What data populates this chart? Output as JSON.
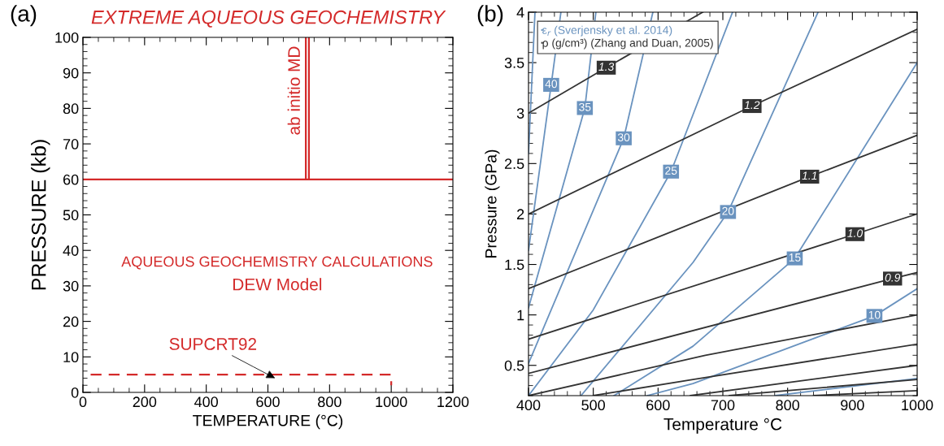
{
  "chart_data": [
    {
      "type": "line",
      "title": "EXTREME AQUEOUS GEOCHEMISTRY",
      "subtitle": "(a)",
      "xlabel": "TEMPERATURE (°C)",
      "ylabel": "PRESSURE (kb)",
      "xlim": [
        0,
        1200
      ],
      "xticks": [
        0,
        200,
        400,
        600,
        800,
        1000,
        1200
      ],
      "ylim": [
        0,
        100
      ],
      "yticks": [
        0,
        10,
        20,
        30,
        40,
        50,
        60,
        70,
        80,
        90,
        100
      ],
      "grid": false,
      "legend": false,
      "annotations": [
        "AQUEOUS GEOCHEMISTRY CALCULATIONS",
        "DEW Model",
        {
          "text": "SUPCRT92",
          "x": 623,
          "y": 4
        }
      ],
      "series": [
        {
          "color": "#d42a2a",
          "x": [
            0,
            1200
          ],
          "values": [
            60,
            60
          ]
        },
        {
          "name": "ab initio MD",
          "color": "#d42a2a",
          "x": [
            723,
            723
          ],
          "values": [
            60,
            100
          ]
        },
        {
          "color": "#d42a2a",
          "x": [
            733,
            733
          ],
          "values": [
            60,
            100
          ]
        },
        {
          "color": "#d42a2a",
          "line_style": "dashed",
          "x": [
            25,
            1000,
            1000
          ],
          "values": [
            5,
            5,
            2
          ]
        }
      ]
    },
    {
      "type": "line",
      "subtitle": "(b)",
      "xlabel": "Temperature °C",
      "ylabel": "Pressure (GPa)",
      "xlim": [
        400,
        1000
      ],
      "xticks": [
        400,
        500,
        600,
        700,
        800,
        900,
        1000
      ],
      "ylim": [
        0.2,
        4
      ],
      "yticks": [
        0.5,
        1,
        1.5,
        2,
        2.5,
        3,
        3.5,
        4
      ],
      "grid": false,
      "legend": "top left",
      "annotations": [
        {
          "text": "40",
          "x": 435,
          "y": 3.28
        },
        {
          "text": "35",
          "x": 487,
          "y": 3.05
        },
        {
          "text": "30",
          "x": 547,
          "y": 2.75
        },
        {
          "text": "25",
          "x": 620,
          "y": 2.42
        },
        {
          "text": "20",
          "x": 708,
          "y": 2.02
        },
        {
          "text": "15",
          "x": 811,
          "y": 1.56
        },
        {
          "text": "10",
          "x": 934,
          "y": 0.99
        },
        {
          "text": "1.3",
          "x": 520,
          "y": 3.45
        },
        {
          "text": "1.2",
          "x": 745,
          "y": 3.07
        },
        {
          "text": "1.1",
          "x": 834,
          "y": 2.37
        },
        {
          "text": "1.0",
          "x": 904,
          "y": 1.8
        },
        {
          "text": "0.9",
          "x": 962,
          "y": 1.36
        }
      ],
      "series": [
        {
          "name": "ε$_{r}$ (Sverjensky et al. 2014)",
          "color": "#6a93bf",
          "x": [
            400,
            410
          ],
          "values": [
            2.6,
            4
          ]
        },
        {
          "color": "#6a93bf",
          "x": [
            400,
            435,
            450
          ],
          "values": [
            1.64,
            3.28,
            4
          ]
        },
        {
          "color": "#6a93bf",
          "x": [
            400,
            487,
            504
          ],
          "values": [
            1.07,
            3.05,
            4
          ]
        },
        {
          "color": "#6a93bf",
          "x": [
            400,
            547,
            592
          ],
          "values": [
            0.52,
            2.75,
            4
          ]
        },
        {
          "color": "#6a93bf",
          "x": [
            400,
            500,
            620,
            715
          ],
          "values": [
            0.2,
            1.05,
            2.42,
            4
          ]
        },
        {
          "color": "#6a93bf",
          "x": [
            481,
            654,
            708,
            847
          ],
          "values": [
            0.2,
            1.52,
            2.02,
            4
          ]
        },
        {
          "color": "#6a93bf",
          "x": [
            532,
            654,
            811,
            1000
          ],
          "values": [
            0.2,
            0.69,
            1.56,
            3.5
          ]
        },
        {
          "color": "#6a93bf",
          "x": [
            583,
            654,
            934,
            1000
          ],
          "values": [
            0.2,
            0.32,
            0.99,
            1.26
          ]
        },
        {
          "color": "#6a93bf",
          "x": [
            781,
            1000
          ],
          "values": [
            0.2,
            0.37
          ]
        },
        {
          "name": "ρ (g/cm³) (Zhang and Duan, 2005)",
          "color": "#333333",
          "x": [
            400,
            520,
            669
          ],
          "values": [
            3.0,
            3.45,
            4.0
          ]
        },
        {
          "color": "#333333",
          "x": [
            400,
            745,
            1000
          ],
          "values": [
            2.0,
            3.07,
            3.83
          ]
        },
        {
          "color": "#333333",
          "x": [
            400,
            834,
            1000
          ],
          "values": [
            1.26,
            2.37,
            2.78
          ]
        },
        {
          "color": "#333333",
          "x": [
            400,
            904,
            1000
          ],
          "values": [
            0.76,
            1.8,
            2.0
          ]
        },
        {
          "color": "#333333",
          "x": [
            400,
            962,
            1000
          ],
          "values": [
            0.42,
            1.36,
            1.42
          ]
        },
        {
          "color": "#333333",
          "x": [
            400,
            673,
            1000
          ],
          "values": [
            0.2,
            0.6,
            1.0
          ]
        },
        {
          "color": "#333333",
          "x": [
            500,
            654,
            1000
          ],
          "values": [
            0.2,
            0.36,
            0.71
          ]
        },
        {
          "color": "#333333",
          "x": [
            650,
            1000
          ],
          "values": [
            0.2,
            0.5
          ]
        },
        {
          "color": "#333333",
          "x": [
            710,
            1000
          ],
          "values": [
            0.2,
            0.36
          ]
        },
        {
          "color": "#333333",
          "x": [
            840,
            1000
          ],
          "values": [
            0.2,
            0.25
          ]
        }
      ]
    }
  ]
}
